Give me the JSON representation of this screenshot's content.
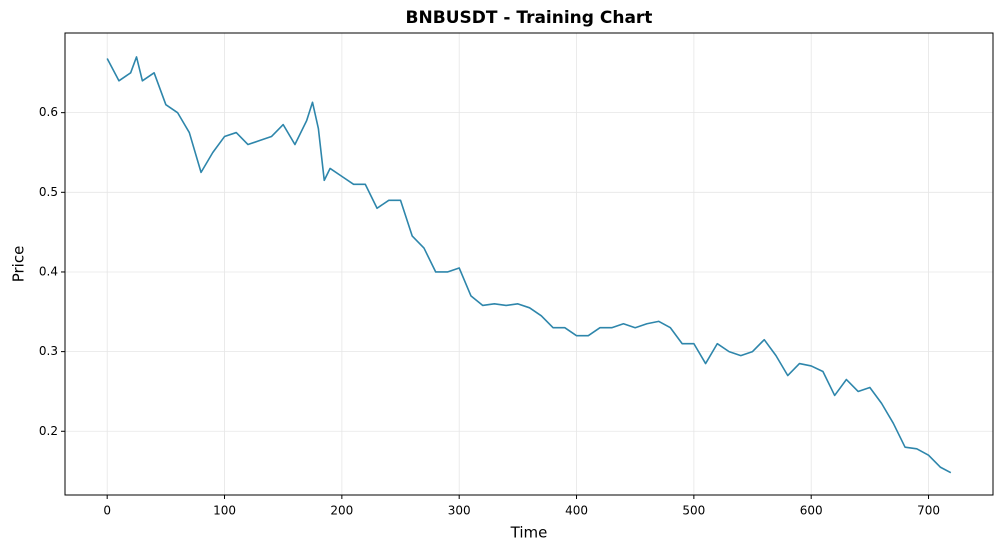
{
  "chart_data": {
    "type": "line",
    "title": "BNBUSDT - Training Chart",
    "x_label": "Time",
    "y_label": "Price",
    "x": [
      0,
      10,
      20,
      25,
      30,
      40,
      50,
      60,
      70,
      80,
      90,
      100,
      110,
      120,
      130,
      140,
      150,
      160,
      170,
      175,
      180,
      185,
      190,
      200,
      210,
      220,
      230,
      240,
      250,
      260,
      270,
      280,
      290,
      300,
      310,
      320,
      330,
      340,
      350,
      360,
      370,
      380,
      390,
      400,
      410,
      420,
      430,
      440,
      450,
      460,
      470,
      480,
      490,
      500,
      510,
      520,
      530,
      540,
      550,
      560,
      570,
      580,
      590,
      600,
      610,
      620,
      630,
      640,
      650,
      660,
      670,
      680,
      690,
      700,
      710,
      719
    ],
    "series": [
      {
        "name": "BNBUSDT",
        "color": "#2e86ab",
        "values": [
          0.668,
          0.64,
          0.65,
          0.67,
          0.64,
          0.65,
          0.61,
          0.6,
          0.575,
          0.525,
          0.55,
          0.57,
          0.575,
          0.56,
          0.565,
          0.57,
          0.585,
          0.56,
          0.59,
          0.613,
          0.58,
          0.515,
          0.53,
          0.52,
          0.51,
          0.51,
          0.48,
          0.49,
          0.49,
          0.445,
          0.43,
          0.4,
          0.4,
          0.405,
          0.37,
          0.358,
          0.36,
          0.358,
          0.36,
          0.355,
          0.345,
          0.33,
          0.33,
          0.32,
          0.32,
          0.33,
          0.33,
          0.335,
          0.33,
          0.335,
          0.338,
          0.33,
          0.31,
          0.31,
          0.285,
          0.31,
          0.3,
          0.295,
          0.3,
          0.315,
          0.295,
          0.27,
          0.285,
          0.282,
          0.275,
          0.245,
          0.265,
          0.25,
          0.255,
          0.235,
          0.21,
          0.18,
          0.178,
          0.17,
          0.155,
          0.148
        ]
      }
    ],
    "xlim": [
      -35.95,
      754.95
    ],
    "ylim": [
      0.12,
      0.7
    ],
    "xticks": [
      0,
      100,
      200,
      300,
      400,
      500,
      600,
      700
    ],
    "yticks": [
      0.2,
      0.3,
      0.4,
      0.5,
      0.6
    ],
    "grid": true
  }
}
